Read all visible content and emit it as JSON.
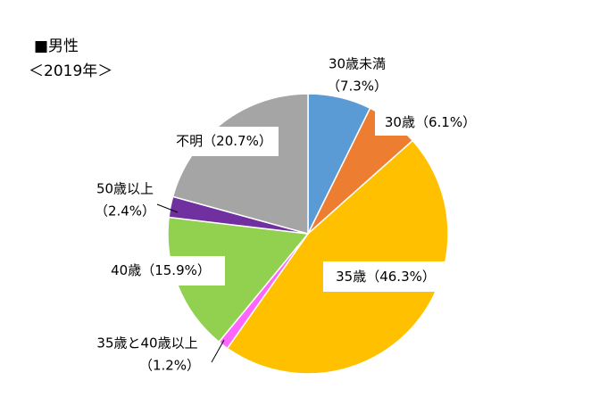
{
  "chart_data": {
    "type": "pie",
    "title": "■男性",
    "subtitle": "＜2019年＞",
    "categories": [
      "30歳未満",
      "30歳",
      "35歳",
      "35歳と40歳以上",
      "40歳",
      "50歳以上",
      "不明"
    ],
    "values": [
      7.3,
      6.1,
      46.3,
      1.2,
      15.9,
      2.4,
      20.7
    ],
    "value_labels": [
      "（7.3%）",
      "（6.1%）",
      "（46.3%）",
      "（1.2%）",
      "（15.9%）",
      "（2.4%）",
      "（20.7%）"
    ],
    "colors": [
      "#5b9bd5",
      "#ed7d31",
      "#ffc000",
      "#ff66ff",
      "#92d050",
      "#7030a0",
      "#a5a5a5"
    ]
  }
}
